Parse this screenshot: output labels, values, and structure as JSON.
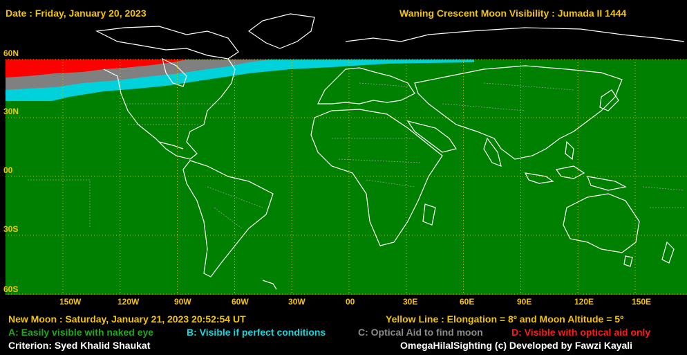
{
  "header": {
    "date": "Date : Friday, January 20, 2023",
    "title": "Waning Crescent Moon Visibility : Jumada II 1444"
  },
  "map": {
    "colors": {
      "easy": "#008000",
      "perfect": "#00d2dc",
      "optical_find": "#808080",
      "optical_only": "#ff0000",
      "coast": "#ffffff",
      "border": "#9a9a9a",
      "grid": "#d8d800"
    },
    "lat_labels": [
      "60N",
      "30N",
      "00",
      "30S",
      "60S"
    ],
    "lon_labels": [
      "150W",
      "120W",
      "90W",
      "60W",
      "30W",
      "00",
      "30E",
      "60E",
      "90E",
      "120E",
      "150E"
    ]
  },
  "footer": {
    "new_moon": "New Moon : Saturday, January 21, 2023  20:52:54  UT",
    "yellow_line": "Yellow Line : Elongation = 8º  and Moon Altitude = 5º",
    "legend": {
      "a": "A: Easily visible with naked eye",
      "b": "B: Visible if perfect conditions",
      "c": "C: Optical Aid to find moon",
      "d": "D: Visible with optical aid only"
    },
    "criterion": "Criterion: Syed Khalid Shaukat",
    "credit": "OmegaHilalSighting  (c)  Developed by Fawzi Kayali"
  }
}
